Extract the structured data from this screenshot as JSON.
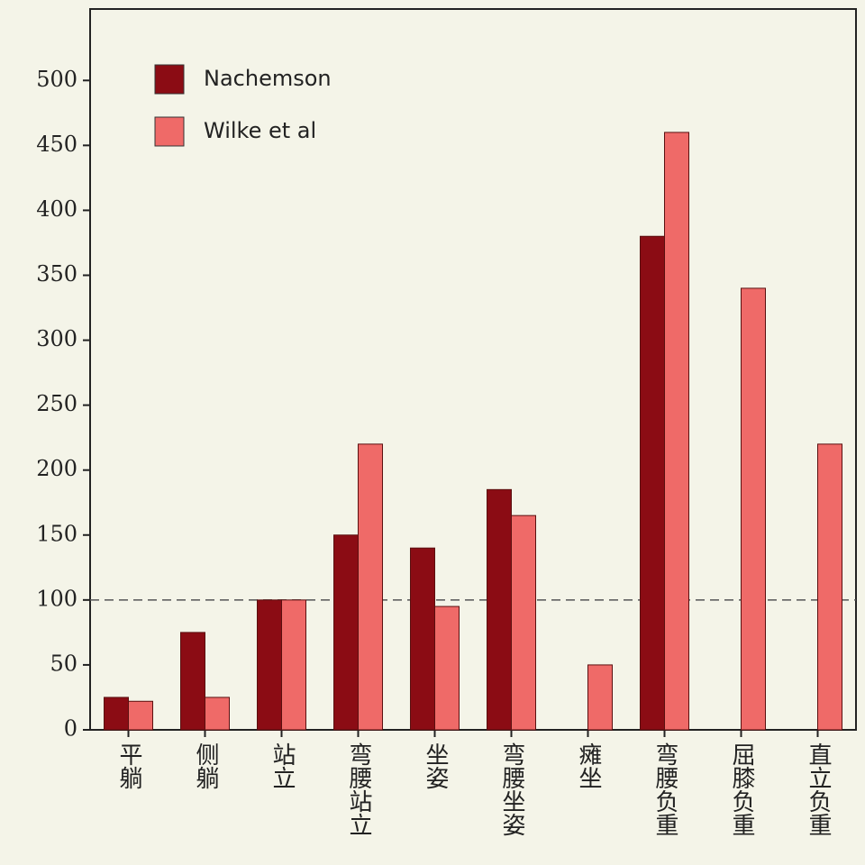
{
  "chart_data": {
    "type": "bar",
    "categories": [
      "平躺",
      "侧躺",
      "站立",
      "弯腰站立",
      "坐姿",
      "弯腰坐姿",
      "瘫坐",
      "弯腰负重",
      "屈膝负重",
      "直立负重"
    ],
    "series": [
      {
        "name": "Nachemson",
        "color": "#8b0c14",
        "values": [
          25,
          75,
          100,
          150,
          140,
          185,
          null,
          380,
          null,
          null
        ]
      },
      {
        "name": "Wilke et al",
        "color": "#ef6a68",
        "values": [
          22,
          25,
          100,
          220,
          95,
          165,
          50,
          460,
          340,
          220
        ]
      }
    ],
    "ylim": [
      0,
      555
    ],
    "yticks": [
      0,
      50,
      100,
      150,
      200,
      250,
      300,
      350,
      400,
      450,
      500
    ],
    "reference_line": 100,
    "legend": "top-left"
  }
}
